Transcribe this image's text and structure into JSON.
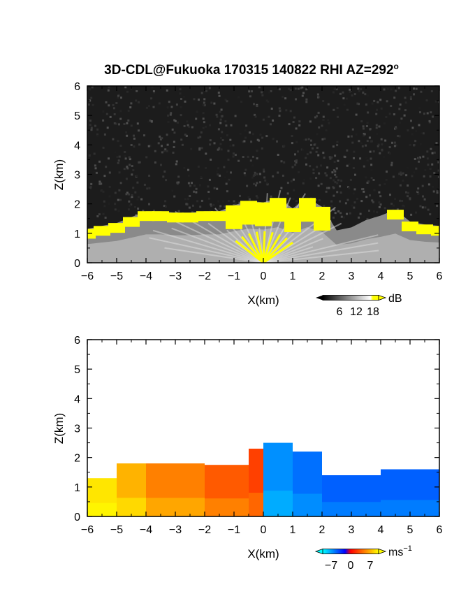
{
  "figure_title": "3D-CDL@Fukuoka 170315 140822 RHI AZ=292",
  "title_degree_sign": "o",
  "chart_data": [
    {
      "type": "heatmap",
      "quantity": "backscatter intensity",
      "xlabel": "X(km)",
      "ylabel": "Z(km)",
      "xlim": [
        -6,
        6
      ],
      "ylim": [
        0,
        6
      ],
      "xticks": [
        -6,
        -5,
        -4,
        -3,
        -2,
        -1,
        0,
        1,
        2,
        3,
        4,
        5,
        6
      ],
      "yticks": [
        0,
        1,
        2,
        3,
        4,
        5,
        6
      ],
      "grid": false,
      "colormap": "grayscale to yellow (saturated)",
      "colorbar": {
        "label": "dB",
        "ticks": [
          6,
          12,
          18
        ],
        "range": [
          0,
          20
        ],
        "saturated_color": "#ffff00"
      },
      "top_of_layer_km": [
        {
          "x": -6.0,
          "z": 1.15
        },
        {
          "x": -5.5,
          "z": 1.25
        },
        {
          "x": -5.0,
          "z": 1.35
        },
        {
          "x": -4.5,
          "z": 1.55
        },
        {
          "x": -4.0,
          "z": 1.75
        },
        {
          "x": -3.5,
          "z": 1.75
        },
        {
          "x": -3.0,
          "z": 1.7
        },
        {
          "x": -2.5,
          "z": 1.7
        },
        {
          "x": -2.0,
          "z": 1.75
        },
        {
          "x": -1.5,
          "z": 1.75
        },
        {
          "x": -1.0,
          "z": 1.95
        },
        {
          "x": -0.5,
          "z": 2.1
        },
        {
          "x": 0.0,
          "z": 2.05
        },
        {
          "x": 0.5,
          "z": 2.2
        },
        {
          "x": 1.0,
          "z": 1.85
        },
        {
          "x": 1.5,
          "z": 2.2
        },
        {
          "x": 2.0,
          "z": 1.9
        },
        {
          "x": 2.5,
          "z": 1.1
        },
        {
          "x": 3.0,
          "z": 1.2
        },
        {
          "x": 3.5,
          "z": 1.45
        },
        {
          "x": 4.0,
          "z": 1.6
        },
        {
          "x": 4.5,
          "z": 1.8
        },
        {
          "x": 5.0,
          "z": 1.4
        },
        {
          "x": 5.5,
          "z": 1.3
        },
        {
          "x": 6.0,
          "z": 1.25
        }
      ]
    },
    {
      "type": "heatmap",
      "quantity": "Doppler velocity",
      "xlabel": "X(km)",
      "ylabel": "Z(km)",
      "xlim": [
        -6,
        6
      ],
      "ylim": [
        0,
        6
      ],
      "xticks": [
        -6,
        -5,
        -4,
        -3,
        -2,
        -1,
        0,
        1,
        2,
        3,
        4,
        5,
        6
      ],
      "yticks": [
        0,
        1,
        2,
        3,
        4,
        5,
        6
      ],
      "grid": false,
      "colormap": "cyan-blue (negative) to red-yellow (positive)",
      "colorbar": {
        "label": "ms",
        "label_exponent": "-1",
        "ticks": [
          -7,
          0,
          7
        ],
        "range": [
          -10,
          10
        ]
      },
      "regions": [
        {
          "x_range": [
            -6.0,
            -5.0
          ],
          "z_range": [
            0,
            1.3
          ],
          "velocity": 9
        },
        {
          "x_range": [
            -5.0,
            -4.0
          ],
          "z_range": [
            0,
            1.8
          ],
          "velocity": 7
        },
        {
          "x_range": [
            -4.0,
            -2.0
          ],
          "z_range": [
            0,
            1.8
          ],
          "velocity": 5
        },
        {
          "x_range": [
            -2.0,
            -0.5
          ],
          "z_range": [
            0,
            1.75
          ],
          "velocity": 3.5
        },
        {
          "x_range": [
            -0.5,
            0.0
          ],
          "z_range": [
            0,
            2.3
          ],
          "velocity": 2.5
        },
        {
          "x_range": [
            0.0,
            1.0
          ],
          "z_range": [
            0,
            2.5
          ],
          "velocity": -6.5
        },
        {
          "x_range": [
            1.0,
            2.0
          ],
          "z_range": [
            0,
            2.2
          ],
          "velocity": -5.5
        },
        {
          "x_range": [
            2.0,
            4.0
          ],
          "z_range": [
            0,
            1.4
          ],
          "velocity": -5
        },
        {
          "x_range": [
            4.0,
            6.0
          ],
          "z_range": [
            0,
            1.6
          ],
          "velocity": -5
        }
      ]
    }
  ]
}
